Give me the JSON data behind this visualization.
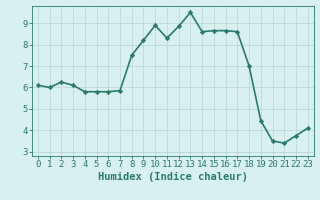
{
  "x": [
    0,
    1,
    2,
    3,
    4,
    5,
    6,
    7,
    8,
    9,
    10,
    11,
    12,
    13,
    14,
    15,
    16,
    17,
    18,
    19,
    20,
    21,
    22,
    23
  ],
  "y": [
    6.1,
    6.0,
    6.25,
    6.1,
    5.8,
    5.8,
    5.8,
    5.85,
    7.5,
    8.2,
    8.9,
    8.3,
    8.85,
    9.5,
    8.6,
    8.65,
    8.65,
    8.6,
    7.0,
    4.45,
    3.5,
    3.4,
    3.75,
    4.1
  ],
  "line_color": "#2a7b6e",
  "marker": "D",
  "marker_size": 2.2,
  "bg_color": "#d8f0ee",
  "grid_color_major": "#c0dada",
  "grid_color_minor": "#e0eeee",
  "xlabel": "Humidex (Indice chaleur)",
  "xlim": [
    -0.5,
    23.5
  ],
  "ylim": [
    2.8,
    9.8
  ],
  "yticks": [
    3,
    4,
    5,
    6,
    7,
    8,
    9
  ],
  "xticks": [
    0,
    1,
    2,
    3,
    4,
    5,
    6,
    7,
    8,
    9,
    10,
    11,
    12,
    13,
    14,
    15,
    16,
    17,
    18,
    19,
    20,
    21,
    22,
    23
  ],
  "tick_color": "#2a7b6e",
  "label_color": "#2a7b6e",
  "font_size_ticks": 6.5,
  "font_size_xlabel": 7.5,
  "line_width": 1.2
}
